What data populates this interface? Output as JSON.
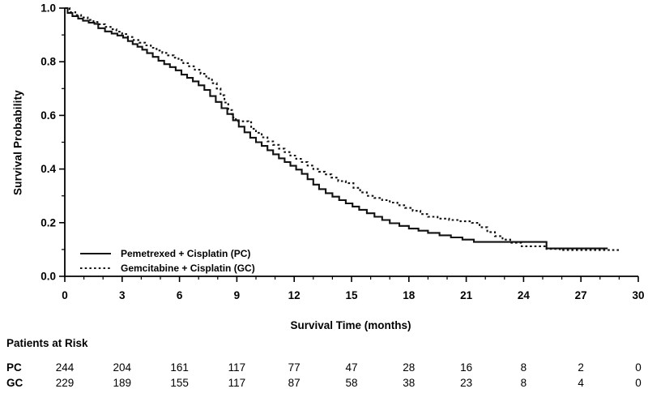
{
  "chart_data": {
    "type": "line",
    "subtype": "kaplan_meier_step",
    "title": "",
    "xlabel": "Survival Time (months)",
    "ylabel": "Survival Probability",
    "xlim": [
      0,
      30
    ],
    "ylim": [
      0.0,
      1.0
    ],
    "x_ticks": [
      0,
      3,
      6,
      9,
      12,
      15,
      18,
      21,
      24,
      27,
      30
    ],
    "x_minor_step": 1,
    "y_ticks": [
      {
        "value": 0.0,
        "label": "0.0"
      },
      {
        "value": 0.2,
        "label": "0.2"
      },
      {
        "value": 0.4,
        "label": "0.4"
      },
      {
        "value": 0.6,
        "label": "0.6"
      },
      {
        "value": 0.8,
        "label": "0.8"
      },
      {
        "value": 1.0,
        "label": "1.0"
      }
    ],
    "y_minor_step": 0.1,
    "grid": false,
    "axis_color": "#000000",
    "legend_position": "inside-lower-left",
    "series": [
      {
        "name": "Pemetrexed + Cisplatin (PC)",
        "short_name": "PC",
        "line_style": "solid",
        "color": "#111111",
        "points": [
          [
            0,
            1.0
          ],
          [
            0.15,
            0.982
          ],
          [
            0.4,
            0.97
          ],
          [
            0.7,
            0.961
          ],
          [
            0.95,
            0.953
          ],
          [
            1.25,
            0.946
          ],
          [
            1.55,
            0.941
          ],
          [
            1.75,
            0.925
          ],
          [
            2.1,
            0.913
          ],
          [
            2.45,
            0.905
          ],
          [
            2.75,
            0.898
          ],
          [
            3.05,
            0.89
          ],
          [
            3.3,
            0.877
          ],
          [
            3.55,
            0.866
          ],
          [
            3.8,
            0.856
          ],
          [
            4.05,
            0.845
          ],
          [
            4.3,
            0.832
          ],
          [
            4.6,
            0.818
          ],
          [
            4.9,
            0.804
          ],
          [
            5.2,
            0.791
          ],
          [
            5.5,
            0.78
          ],
          [
            5.8,
            0.768
          ],
          [
            6.1,
            0.752
          ],
          [
            6.4,
            0.74
          ],
          [
            6.7,
            0.727
          ],
          [
            7.0,
            0.712
          ],
          [
            7.3,
            0.695
          ],
          [
            7.6,
            0.672
          ],
          [
            7.9,
            0.65
          ],
          [
            8.2,
            0.627
          ],
          [
            8.5,
            0.605
          ],
          [
            8.8,
            0.582
          ],
          [
            9.1,
            0.558
          ],
          [
            9.4,
            0.537
          ],
          [
            9.7,
            0.517
          ],
          [
            10.0,
            0.5
          ],
          [
            10.3,
            0.486
          ],
          [
            10.6,
            0.47
          ],
          [
            10.9,
            0.455
          ],
          [
            11.2,
            0.44
          ],
          [
            11.5,
            0.426
          ],
          [
            11.8,
            0.412
          ],
          [
            12.1,
            0.398
          ],
          [
            12.4,
            0.382
          ],
          [
            12.7,
            0.362
          ],
          [
            13.0,
            0.342
          ],
          [
            13.3,
            0.325
          ],
          [
            13.65,
            0.31
          ],
          [
            14.0,
            0.297
          ],
          [
            14.35,
            0.284
          ],
          [
            14.7,
            0.272
          ],
          [
            15.05,
            0.26
          ],
          [
            15.4,
            0.248
          ],
          [
            15.8,
            0.235
          ],
          [
            16.2,
            0.222
          ],
          [
            16.6,
            0.21
          ],
          [
            17.0,
            0.198
          ],
          [
            17.5,
            0.188
          ],
          [
            18.0,
            0.178
          ],
          [
            18.5,
            0.17
          ],
          [
            19.0,
            0.162
          ],
          [
            19.6,
            0.153
          ],
          [
            20.2,
            0.145
          ],
          [
            20.8,
            0.137
          ],
          [
            21.4,
            0.128
          ],
          [
            25.2,
            0.104
          ],
          [
            28.4,
            0.104
          ]
        ]
      },
      {
        "name": "Gemcitabine + Cisplatin (GC)",
        "short_name": "GC",
        "line_style": "dotted",
        "color": "#111111",
        "points": [
          [
            0,
            1.0
          ],
          [
            0.25,
            0.985
          ],
          [
            0.55,
            0.974
          ],
          [
            0.85,
            0.965
          ],
          [
            1.2,
            0.956
          ],
          [
            1.5,
            0.948
          ],
          [
            1.8,
            0.94
          ],
          [
            2.1,
            0.93
          ],
          [
            2.4,
            0.921
          ],
          [
            2.7,
            0.912
          ],
          [
            3.0,
            0.903
          ],
          [
            3.3,
            0.892
          ],
          [
            3.6,
            0.881
          ],
          [
            3.9,
            0.871
          ],
          [
            4.2,
            0.861
          ],
          [
            4.5,
            0.852
          ],
          [
            4.8,
            0.842
          ],
          [
            5.1,
            0.833
          ],
          [
            5.4,
            0.824
          ],
          [
            5.7,
            0.815
          ],
          [
            5.95,
            0.806
          ],
          [
            6.2,
            0.795
          ],
          [
            6.5,
            0.783
          ],
          [
            6.8,
            0.77
          ],
          [
            7.1,
            0.755
          ],
          [
            7.4,
            0.738
          ],
          [
            7.7,
            0.72
          ],
          [
            7.95,
            0.7
          ],
          [
            8.15,
            0.675
          ],
          [
            8.35,
            0.648
          ],
          [
            8.55,
            0.62
          ],
          [
            8.75,
            0.592
          ],
          [
            8.95,
            0.578
          ],
          [
            9.6,
            0.575
          ],
          [
            9.75,
            0.55
          ],
          [
            10.0,
            0.535
          ],
          [
            10.3,
            0.518
          ],
          [
            10.6,
            0.503
          ],
          [
            10.9,
            0.49
          ],
          [
            11.2,
            0.476
          ],
          [
            11.5,
            0.463
          ],
          [
            11.8,
            0.45
          ],
          [
            12.1,
            0.438
          ],
          [
            12.4,
            0.426
          ],
          [
            12.7,
            0.413
          ],
          [
            13.0,
            0.4
          ],
          [
            13.3,
            0.39
          ],
          [
            13.6,
            0.38
          ],
          [
            13.95,
            0.368
          ],
          [
            14.3,
            0.355
          ],
          [
            14.7,
            0.347
          ],
          [
            15.1,
            0.33
          ],
          [
            15.45,
            0.313
          ],
          [
            15.8,
            0.3
          ],
          [
            16.2,
            0.292
          ],
          [
            16.6,
            0.284
          ],
          [
            17.0,
            0.275
          ],
          [
            17.4,
            0.265
          ],
          [
            17.8,
            0.255
          ],
          [
            18.2,
            0.244
          ],
          [
            18.6,
            0.232
          ],
          [
            19.0,
            0.222
          ],
          [
            19.5,
            0.215
          ],
          [
            20.1,
            0.21
          ],
          [
            20.7,
            0.205
          ],
          [
            21.3,
            0.199
          ],
          [
            21.7,
            0.183
          ],
          [
            22.1,
            0.165
          ],
          [
            22.5,
            0.15
          ],
          [
            22.9,
            0.137
          ],
          [
            23.3,
            0.125
          ],
          [
            23.9,
            0.112
          ],
          [
            25.2,
            0.102
          ],
          [
            25.9,
            0.098
          ],
          [
            29.0,
            0.098
          ]
        ]
      }
    ],
    "at_risk": {
      "title": "Patients at Risk",
      "time_points": [
        0,
        3,
        6,
        9,
        12,
        15,
        18,
        21,
        24,
        27,
        30
      ],
      "rows": [
        {
          "label": "PC",
          "values": [
            "244",
            "204",
            "161",
            "117",
            "77",
            "47",
            "28",
            "16",
            "8",
            "2",
            "0"
          ]
        },
        {
          "label": "GC",
          "values": [
            "229",
            "189",
            "155",
            "117",
            "87",
            "58",
            "38",
            "23",
            "8",
            "4",
            "0"
          ]
        }
      ]
    }
  }
}
